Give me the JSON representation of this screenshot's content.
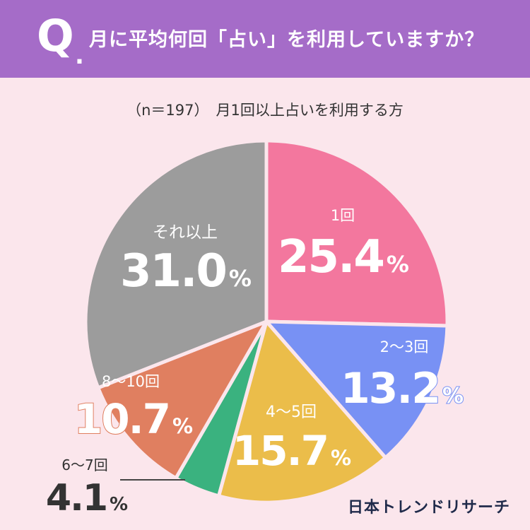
{
  "header": {
    "q_letter": "Q",
    "q_dot": ".",
    "question": "月に平均何回「占い」を利用していますか？"
  },
  "subtitle": {
    "n": "（n＝197）",
    "text": "月1回以上占いを利用する方"
  },
  "brand": "日本トレンドリサーチ",
  "chart_data": {
    "type": "pie",
    "title": "月に平均何回「占い」を利用していますか？",
    "start": "12 o'clock, clockwise",
    "slices": [
      {
        "label": "1回",
        "value": 25.4,
        "display": "25.4",
        "color": "#f3779e"
      },
      {
        "label": "2〜3回",
        "value": 13.2,
        "display": "13.2",
        "color": "#7891f4"
      },
      {
        "label": "4〜5回",
        "value": 15.7,
        "display": "15.7",
        "color": "#ebbd4a"
      },
      {
        "label": "6〜7回",
        "value": 4.1,
        "display": "4.1",
        "color": "#3ab27f"
      },
      {
        "label": "8〜10回",
        "value": 10.7,
        "display": "10.7",
        "color": "#e07f60"
      },
      {
        "label": "それ以上",
        "value": 31.0,
        "display": "31.0",
        "color": "#9c9c9c"
      }
    ],
    "unit": "%"
  }
}
